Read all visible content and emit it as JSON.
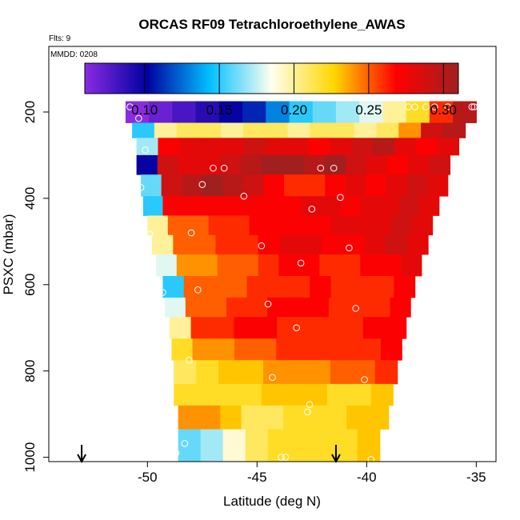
{
  "chart_data": {
    "type": "heatmap",
    "title": "ORCAS RF09 Tetrachloroethylene_AWAS",
    "flights_label": "Flts: 9",
    "date_label": "MMDD: 0208",
    "xlabel": "Latitude (deg N)",
    "ylabel": "PSXC (mbar)",
    "xlim": [
      -54.5,
      -34.1
    ],
    "ylim": [
      1010,
      48
    ],
    "x_ticks": [
      -50,
      -45,
      -40,
      -35
    ],
    "x_tick_labels": [
      "-50",
      "-45",
      "-40",
      "-35"
    ],
    "y_ticks": [
      200,
      400,
      600,
      800,
      1000
    ],
    "y_tick_labels": [
      "200",
      "400",
      "600",
      "800",
      "1000"
    ],
    "colorbar": {
      "range": [
        0.06,
        0.31
      ],
      "ticks": [
        0.1,
        0.15,
        0.2,
        0.25,
        0.3
      ],
      "tick_labels": [
        "0.10",
        "0.15",
        "0.20",
        "0.25",
        "0.30"
      ],
      "colors": [
        "#8a2be2",
        "#0000a0",
        "#00bfff",
        "#fffff0",
        "#ffd700",
        "#ff0000",
        "#a02020"
      ]
    },
    "layers": [
      {
        "p_top": 175,
        "p_bot": 225,
        "lat_start": -51,
        "lat_end": -35,
        "values": [
          0.06,
          0.07,
          0.08,
          0.09,
          0.1,
          0.11,
          0.13,
          0.15,
          0.16,
          0.17,
          0.18,
          0.2,
          0.22,
          0.26,
          0.3
        ]
      },
      {
        "p_top": 225,
        "p_bot": 260,
        "lat_start": -50.7,
        "lat_end": -35.5,
        "values": [
          0.15,
          0.2,
          0.21,
          0.21,
          0.2,
          0.21,
          0.21,
          0.2,
          0.21,
          0.21,
          0.2,
          0.21,
          0.24,
          0.29,
          0.3
        ]
      },
      {
        "p_top": 260,
        "p_bot": 300,
        "lat_start": -50.5,
        "lat_end": -35.8,
        "values": [
          0.17,
          0.27,
          0.28,
          0.28,
          0.28,
          0.29,
          0.28,
          0.28,
          0.27,
          0.28,
          0.29,
          0.3,
          0.28,
          0.27,
          0.28
        ]
      },
      {
        "p_top": 300,
        "p_bot": 345,
        "lat_start": -50.5,
        "lat_end": -36.2,
        "values": [
          0.1,
          0.29,
          0.28,
          0.28,
          0.29,
          0.3,
          0.31,
          0.31,
          0.3,
          0.31,
          0.29,
          0.28,
          0.27,
          0.28,
          0.29
        ]
      },
      {
        "p_top": 345,
        "p_bot": 395,
        "lat_start": -50.3,
        "lat_end": -36.3,
        "values": [
          0.16,
          0.29,
          0.3,
          0.31,
          0.3,
          0.29,
          0.27,
          0.26,
          0.26,
          0.27,
          0.28,
          0.27,
          0.28,
          0.29,
          0.28
        ]
      },
      {
        "p_top": 395,
        "p_bot": 440,
        "lat_start": -50.2,
        "lat_end": -36.7,
        "values": [
          0.15,
          0.27,
          0.27,
          0.27,
          0.27,
          0.27,
          0.27,
          0.27,
          0.28,
          0.28,
          0.27,
          0.28,
          0.28,
          0.29,
          0.28
        ]
      },
      {
        "p_top": 440,
        "p_bot": 485,
        "lat_start": -50,
        "lat_end": -37,
        "values": [
          0.2,
          0.25,
          0.25,
          0.26,
          0.26,
          0.27,
          0.27,
          0.27,
          0.27,
          0.28,
          0.28,
          0.28,
          0.29,
          0.28
        ]
      },
      {
        "p_top": 485,
        "p_bot": 530,
        "lat_start": -49.8,
        "lat_end": -37.2,
        "values": [
          0.2,
          0.25,
          0.25,
          0.26,
          0.26,
          0.27,
          0.28,
          0.28,
          0.27,
          0.27,
          0.28,
          0.29,
          0.28
        ]
      },
      {
        "p_top": 530,
        "p_bot": 580,
        "lat_start": -49.6,
        "lat_end": -37.5,
        "values": [
          0.18,
          0.24,
          0.24,
          0.25,
          0.25,
          0.26,
          0.27,
          0.27,
          0.26,
          0.26,
          0.27,
          0.27,
          0.28
        ]
      },
      {
        "p_top": 580,
        "p_bot": 630,
        "lat_start": -49.3,
        "lat_end": -37.8,
        "values": [
          0.15,
          0.25,
          0.25,
          0.25,
          0.26,
          0.26,
          0.26,
          0.27,
          0.26,
          0.26,
          0.26,
          0.27
        ]
      },
      {
        "p_top": 630,
        "p_bot": 675,
        "lat_start": -49.2,
        "lat_end": -38,
        "values": [
          0.18,
          0.25,
          0.25,
          0.26,
          0.26,
          0.27,
          0.27,
          0.27,
          0.26,
          0.26,
          0.26,
          0.27
        ]
      },
      {
        "p_top": 675,
        "p_bot": 725,
        "lat_start": -49,
        "lat_end": -38.2,
        "values": [
          0.2,
          0.26,
          0.26,
          0.27,
          0.27,
          0.26,
          0.26,
          0.26,
          0.26,
          0.27,
          0.27
        ]
      },
      {
        "p_top": 725,
        "p_bot": 775,
        "lat_start": -48.9,
        "lat_end": -38.4,
        "values": [
          0.22,
          0.24,
          0.24,
          0.25,
          0.25,
          0.26,
          0.26,
          0.26,
          0.26,
          0.26,
          0.27
        ]
      },
      {
        "p_top": 775,
        "p_bot": 830,
        "lat_start": -48.8,
        "lat_end": -38.6,
        "values": [
          0.21,
          0.22,
          0.23,
          0.23,
          0.24,
          0.24,
          0.24,
          0.25,
          0.25,
          0.26
        ]
      },
      {
        "p_top": 830,
        "p_bot": 880,
        "lat_start": -48.8,
        "lat_end": -38.8,
        "values": [
          0.22,
          0.22,
          0.22,
          0.22,
          0.23,
          0.23,
          0.23,
          0.22,
          0.22,
          0.23
        ]
      },
      {
        "p_top": 880,
        "p_bot": 935,
        "lat_start": -48.6,
        "lat_end": -39,
        "values": [
          0.24,
          0.24,
          0.23,
          0.21,
          0.21,
          0.22,
          0.22,
          0.22,
          0.23,
          0.23
        ]
      },
      {
        "p_top": 935,
        "p_bot": 1010,
        "lat_start": -48.6,
        "lat_end": -39.4,
        "values": [
          0.16,
          0.17,
          0.19,
          0.21,
          0.22,
          0.22,
          0.22,
          0.22,
          0.23
        ]
      }
    ],
    "sample_points": [
      [
        -50.8,
        188
      ],
      [
        -50.4,
        215
      ],
      [
        -50.1,
        288
      ],
      [
        -50.3,
        375
      ],
      [
        -49.9,
        483
      ],
      [
        -49.3,
        618
      ],
      [
        -47.5,
        368
      ],
      [
        -47,
        330
      ],
      [
        -46.5,
        330
      ],
      [
        -45.6,
        395
      ],
      [
        -44.8,
        510
      ],
      [
        -48,
        480
      ],
      [
        -47.7,
        612
      ],
      [
        -49.1,
        778
      ],
      [
        -48.1,
        775
      ],
      [
        -48.8,
        968
      ],
      [
        -48.3,
        968
      ],
      [
        -48.7,
        990
      ],
      [
        -44.5,
        645
      ],
      [
        -44.3,
        815
      ],
      [
        -43.2,
        700
      ],
      [
        -43,
        550
      ],
      [
        -43.9,
        1000
      ],
      [
        -43.7,
        1000
      ],
      [
        -42.5,
        425
      ],
      [
        -42.6,
        878
      ],
      [
        -42.7,
        895
      ],
      [
        -42.1,
        330
      ],
      [
        -41.5,
        330
      ],
      [
        -41.2,
        398
      ],
      [
        -40.8,
        515
      ],
      [
        -40.5,
        655
      ],
      [
        -40.1,
        820
      ],
      [
        -39.8,
        1005
      ],
      [
        -37.3,
        188
      ],
      [
        -37.8,
        188
      ],
      [
        -38.1,
        188
      ],
      [
        -36.9,
        188
      ],
      [
        -36.3,
        188
      ],
      [
        -35.2,
        188
      ],
      [
        -35.1,
        188
      ]
    ],
    "arrows_lat": [
      -53,
      -41.4
    ]
  }
}
